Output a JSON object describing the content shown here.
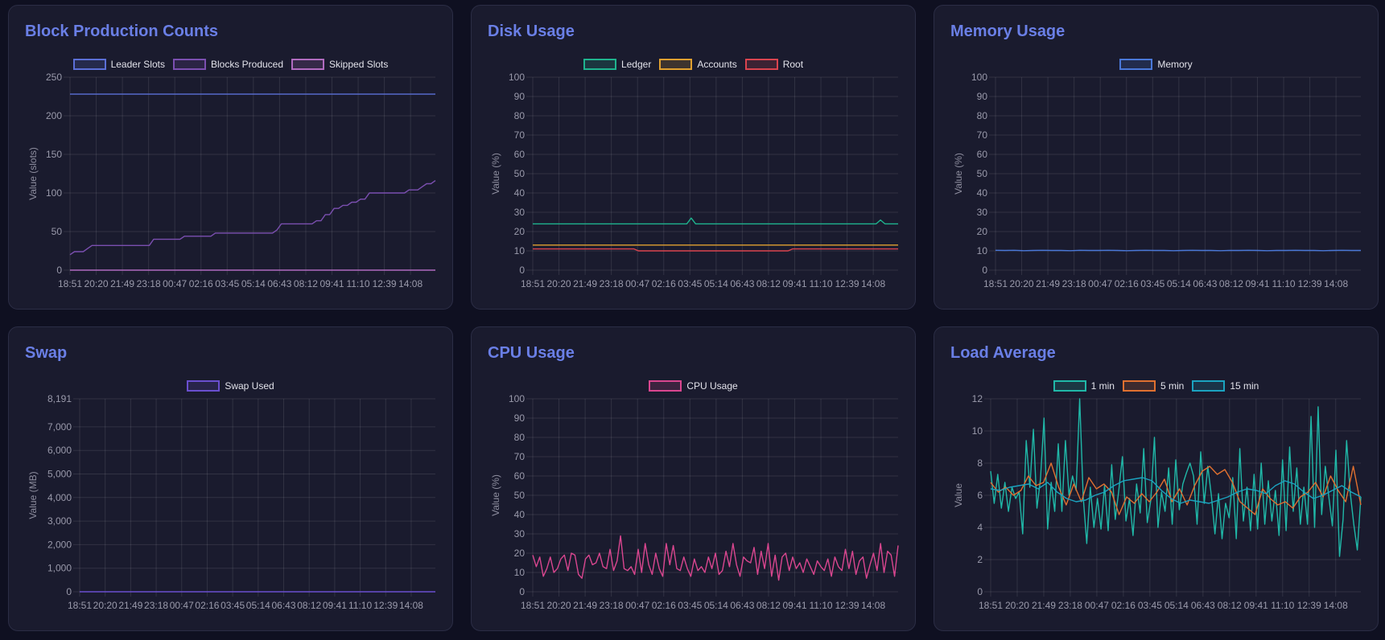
{
  "chart_data": [
    {
      "type": "line",
      "title": "Block Production Counts",
      "ylabel": "Value (slots)",
      "ylim": [
        0,
        250
      ],
      "yticks": [
        "0",
        "50",
        "100",
        "150",
        "200",
        "250"
      ],
      "ytick_values": [
        0,
        50,
        100,
        150,
        200,
        250
      ],
      "x_tick_labels": [
        "18:51",
        "20:20",
        "21:49",
        "23:18",
        "00:47",
        "02:16",
        "03:45",
        "05:14",
        "06:43",
        "08:12",
        "09:41",
        "11:10",
        "12:39",
        "14:08"
      ],
      "legend": "top",
      "grid": true,
      "series": [
        {
          "name": "Leader Slots",
          "color": "#5b6fd6",
          "values": [
            228,
            228
          ]
        },
        {
          "name": "Blocks Produced",
          "color": "#7b4fb0",
          "values": [
            20,
            24,
            24,
            24,
            28,
            32,
            32,
            32,
            32,
            32,
            32,
            32,
            32,
            32,
            32,
            32,
            32,
            32,
            32,
            40,
            40,
            40,
            40,
            40,
            40,
            40,
            44,
            44,
            44,
            44,
            44,
            44,
            44,
            48,
            48,
            48,
            48,
            48,
            48,
            48,
            48,
            48,
            48,
            48,
            48,
            48,
            48,
            52,
            60,
            60,
            60,
            60,
            60,
            60,
            60,
            60,
            64,
            64,
            72,
            72,
            80,
            80,
            84,
            84,
            88,
            88,
            92,
            92,
            100,
            100,
            100,
            100,
            100,
            100,
            100,
            100,
            100,
            104,
            104,
            104,
            108,
            112,
            112,
            116
          ]
        },
        {
          "name": "Skipped Slots",
          "color": "#b06bbf",
          "values": [
            0,
            0
          ]
        }
      ]
    },
    {
      "type": "line",
      "title": "Disk Usage",
      "ylabel": "Value (%)",
      "ylim": [
        0,
        100
      ],
      "yticks": [
        "0",
        "10",
        "20",
        "30",
        "40",
        "50",
        "60",
        "70",
        "80",
        "90",
        "100"
      ],
      "ytick_values": [
        0,
        10,
        20,
        30,
        40,
        50,
        60,
        70,
        80,
        90,
        100
      ],
      "x_tick_labels": [
        "18:51",
        "20:20",
        "21:49",
        "23:18",
        "00:47",
        "02:16",
        "03:45",
        "05:14",
        "06:43",
        "08:12",
        "09:41",
        "11:10",
        "12:39",
        "14:08"
      ],
      "legend": "top",
      "grid": true,
      "series": [
        {
          "name": "Ledger",
          "color": "#1fb38e",
          "values": [
            24,
            24,
            24,
            24,
            24,
            24,
            24,
            24,
            24,
            24,
            24,
            24,
            24,
            24,
            24,
            24,
            24,
            24,
            24,
            24,
            24,
            24,
            24,
            24,
            24,
            24,
            24,
            24,
            24,
            24,
            24,
            24,
            24,
            24,
            24,
            24,
            27,
            24,
            24,
            24,
            24,
            24,
            24,
            24,
            24,
            24,
            24,
            24,
            24,
            24,
            24,
            24,
            24,
            24,
            24,
            24,
            24,
            24,
            24,
            24,
            24,
            24,
            24,
            24,
            24,
            24,
            24,
            24,
            24,
            24,
            24,
            24,
            24,
            24,
            24,
            24,
            24,
            24,
            24,
            26,
            24,
            24,
            24,
            24
          ]
        },
        {
          "name": "Accounts",
          "color": "#e0a030",
          "values": [
            13,
            13
          ]
        },
        {
          "name": "Root",
          "color": "#d9444f",
          "values": [
            11,
            11,
            11,
            11,
            11,
            11,
            11,
            11,
            11,
            11,
            11,
            11,
            11,
            11,
            11,
            11,
            11,
            11,
            11,
            11,
            11,
            11,
            11,
            11,
            10,
            10,
            10,
            10,
            10,
            10,
            10,
            10,
            10,
            10,
            10,
            10,
            10,
            10,
            10,
            10,
            10,
            10,
            10,
            10,
            10,
            10,
            10,
            10,
            10,
            10,
            10,
            10,
            10,
            10,
            10,
            10,
            10,
            10,
            10,
            11,
            11,
            11,
            11,
            11,
            11,
            11,
            11,
            11,
            11,
            11,
            11,
            11,
            11,
            11,
            11,
            11,
            11,
            11,
            11,
            11,
            11,
            11,
            11,
            11
          ]
        }
      ]
    },
    {
      "type": "line",
      "title": "Memory Usage",
      "ylabel": "Value (%)",
      "ylim": [
        0,
        100
      ],
      "yticks": [
        "0",
        "10",
        "20",
        "30",
        "40",
        "50",
        "60",
        "70",
        "80",
        "90",
        "100"
      ],
      "ytick_values": [
        0,
        10,
        20,
        30,
        40,
        50,
        60,
        70,
        80,
        90,
        100
      ],
      "x_tick_labels": [
        "18:51",
        "20:20",
        "21:49",
        "23:18",
        "00:47",
        "02:16",
        "03:45",
        "05:14",
        "06:43",
        "08:12",
        "09:41",
        "11:10",
        "12:39",
        "14:08"
      ],
      "legend": "top",
      "grid": true,
      "series": [
        {
          "name": "Memory",
          "color": "#4a78d8",
          "values": [
            10.3,
            10.2,
            10.3,
            10.1,
            10.2,
            10.3,
            10.2,
            10.2,
            10.1,
            10.3,
            10.2,
            10.2,
            10.3,
            10.2,
            10.1,
            10.2,
            10.3,
            10.2,
            10.2,
            10.1,
            10.2,
            10.3,
            10.2,
            10.2,
            10.1,
            10.2,
            10.2,
            10.3,
            10.2,
            10.1,
            10.2,
            10.2,
            10.3,
            10.2,
            10.2,
            10.1,
            10.2,
            10.3,
            10.2,
            10.2
          ]
        }
      ]
    },
    {
      "type": "line",
      "title": "Swap",
      "ylabel": "Value (MB)",
      "ylim": [
        0,
        8191
      ],
      "yticks": [
        "0",
        "1,000",
        "2,000",
        "3,000",
        "4,000",
        "5,000",
        "6,000",
        "7,000",
        "8,191"
      ],
      "ytick_values": [
        0,
        1000,
        2000,
        3000,
        4000,
        5000,
        6000,
        7000,
        8191
      ],
      "x_tick_labels": [
        "18:51",
        "20:20",
        "21:49",
        "23:18",
        "00:47",
        "02:16",
        "03:45",
        "05:14",
        "06:43",
        "08:12",
        "09:41",
        "11:10",
        "12:39",
        "14:08"
      ],
      "legend": "top",
      "grid": true,
      "series": [
        {
          "name": "Swap Used",
          "color": "#6a4fcf",
          "values": [
            0,
            0
          ]
        }
      ]
    },
    {
      "type": "line",
      "title": "CPU Usage",
      "ylabel": "Value (%)",
      "ylim": [
        0,
        100
      ],
      "yticks": [
        "0",
        "10",
        "20",
        "30",
        "40",
        "50",
        "60",
        "70",
        "80",
        "90",
        "100"
      ],
      "ytick_values": [
        0,
        10,
        20,
        30,
        40,
        50,
        60,
        70,
        80,
        90,
        100
      ],
      "x_tick_labels": [
        "18:51",
        "20:20",
        "21:49",
        "23:18",
        "00:47",
        "02:16",
        "03:45",
        "05:14",
        "06:43",
        "08:12",
        "09:41",
        "11:10",
        "12:39",
        "14:08"
      ],
      "legend": "top",
      "grid": true,
      "series": [
        {
          "name": "CPU Usage",
          "color": "#d9468f",
          "values": [
            19,
            13,
            18,
            8,
            12,
            18,
            10,
            12,
            17,
            19,
            11,
            20,
            19,
            9,
            7,
            17,
            19,
            14,
            15,
            20,
            13,
            12,
            22,
            11,
            16,
            29,
            12,
            11,
            13,
            9,
            22,
            10,
            25,
            14,
            9,
            20,
            12,
            8,
            25,
            14,
            24,
            12,
            11,
            18,
            12,
            8,
            17,
            11,
            13,
            10,
            18,
            12,
            20,
            9,
            11,
            21,
            13,
            25,
            14,
            8,
            18,
            16,
            15,
            23,
            9,
            21,
            12,
            25,
            8,
            19,
            6,
            18,
            20,
            11,
            18,
            12,
            15,
            10,
            17,
            13,
            9,
            16,
            13,
            11,
            17,
            8,
            18,
            13,
            11,
            22,
            12,
            21,
            9,
            16,
            18,
            7,
            14,
            20,
            11,
            25,
            10,
            21,
            19,
            8,
            24
          ]
        }
      ]
    },
    {
      "type": "line",
      "title": "Load Average",
      "ylabel": "Value",
      "ylim": [
        0,
        12
      ],
      "yticks": [
        "0",
        "2",
        "4",
        "6",
        "8",
        "10",
        "12"
      ],
      "ytick_values": [
        0,
        2,
        4,
        6,
        8,
        10,
        12
      ],
      "x_tick_labels": [
        "18:51",
        "20:20",
        "21:49",
        "23:18",
        "00:47",
        "02:16",
        "03:45",
        "05:14",
        "06:43",
        "08:12",
        "09:41",
        "11:10",
        "12:39",
        "14:08"
      ],
      "legend": "top",
      "grid": true,
      "series": [
        {
          "name": "1 min",
          "color": "#20b8a8",
          "values": [
            7.5,
            5.5,
            7.3,
            5.2,
            6.8,
            5.0,
            6.5,
            5.8,
            6.2,
            3.6,
            9.4,
            6.5,
            10.1,
            5.2,
            7.0,
            10.8,
            3.9,
            6.8,
            5.0,
            9.2,
            5.0,
            9.4,
            6.0,
            7.2,
            6.3,
            12,
            5.9,
            3.0,
            6.5,
            4.0,
            5.8,
            3.9,
            6.6,
            3.8,
            7.9,
            4.5,
            6.3,
            8.4,
            4.4,
            5.8,
            3.5,
            6.7,
            4.9,
            8.9,
            4.3,
            5.7,
            9.6,
            4.0,
            6.2,
            5.0,
            7.7,
            4.2,
            8.2,
            5.1,
            6.7,
            7.4,
            8.0,
            7.2,
            4.2,
            8.7,
            5.5,
            7.8,
            6.0,
            3.6,
            6.1,
            3.3,
            5.5,
            4.6,
            7.1,
            3.3,
            8.9,
            4.4,
            6.5,
            3.8,
            7.3,
            3.9,
            8.0,
            4.2,
            6.9,
            4.4,
            6.3,
            3.5,
            8.2,
            3.8,
            9.0,
            5.0,
            7.7,
            4.2,
            6.5,
            4.2,
            10.9,
            4.0,
            11.5,
            4.8,
            7.8,
            5.9,
            4.1,
            8.8,
            2.2,
            4.5,
            9.4,
            6.2,
            4.2,
            2.6,
            5.9
          ]
        },
        {
          "name": "5 min",
          "color": "#e07030",
          "values": [
            6.8,
            6.2,
            6.5,
            6.0,
            6.3,
            7.2,
            6.6,
            6.8,
            8.0,
            6.5,
            5.4,
            6.7,
            5.6,
            7.1,
            6.4,
            6.7,
            6.2,
            4.8,
            5.9,
            5.5,
            6.1,
            5.6,
            6.2,
            7.0,
            5.6,
            6.4,
            5.4,
            6.6,
            7.5,
            7.8,
            7.3,
            7.6,
            6.8,
            5.6,
            5.2,
            4.8,
            6.4,
            5.8,
            5.4,
            5.6,
            5.2,
            5.9,
            6.2,
            6.8,
            5.9,
            7.2,
            6.3,
            5.6,
            7.8,
            5.4
          ]
        },
        {
          "name": "15 min",
          "color": "#1ba3c0",
          "values": [
            6.4,
            6.3,
            6.5,
            6.6,
            6.7,
            6.4,
            6.8,
            6.2,
            5.8,
            5.6,
            5.7,
            6.0,
            6.2,
            6.6,
            6.9,
            7.0,
            7.1,
            6.9,
            6.3,
            5.8,
            5.5,
            5.7,
            5.6,
            5.5,
            5.7,
            5.9,
            6.2,
            6.4,
            6.3,
            6.1,
            6.6,
            6.9,
            6.7,
            6.2,
            5.8,
            6.0,
            6.3,
            6.6,
            6.2,
            5.9
          ]
        }
      ]
    }
  ]
}
